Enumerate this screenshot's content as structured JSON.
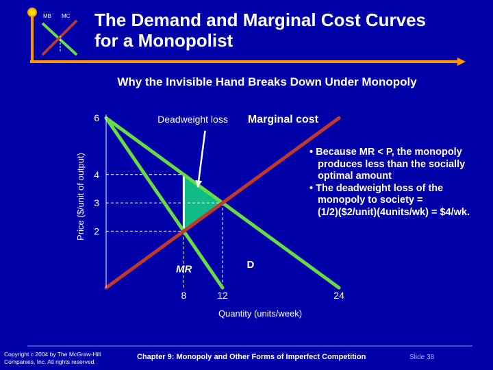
{
  "slide": {
    "logo_labels": [
      "MB",
      "MC"
    ],
    "title_line1": "The Demand and Marginal Cost Curves",
    "title_line2": "for a Monopolist",
    "subtitle": "Why the Invisible Hand Breaks Down Under Monopoly",
    "bullets": [
      "• Because MR < P, the monopoly",
      "produces less than the socially",
      "optimal amount",
      "• The deadweight loss of the",
      "monopoly to society =",
      "(1/2)($2/unit)(4units/wk) = $4/wk."
    ],
    "copyright": "Copyright c 2004 by The McGraw-Hill Companies, Inc. All rights reserved.",
    "chapter": "Chapter 9: Monopoly and Other Forms of Imperfect Competition",
    "slide_number": "Slide 38"
  },
  "colors": {
    "background": "#0000a8",
    "curve_green": "#66dd44",
    "mc_red": "#c0392b",
    "dwl_fill": "#11bb88",
    "arrow_orange": "#ff9900"
  },
  "chart_data": {
    "type": "line",
    "title": "",
    "xlabel": "Quantity (units/week)",
    "ylabel": "Price ($/unit of output)",
    "xlim": [
      0,
      24
    ],
    "ylim": [
      0,
      6
    ],
    "x_ticks": [
      {
        "value": 8,
        "label": "8"
      },
      {
        "value": 12,
        "label": "12"
      },
      {
        "value": 24,
        "label": "24"
      }
    ],
    "y_ticks": [
      {
        "value": 6,
        "label": "6"
      },
      {
        "value": 4,
        "label": "4"
      },
      {
        "value": 3,
        "label": "3"
      },
      {
        "value": 2,
        "label": "2"
      }
    ],
    "series": [
      {
        "name": "D",
        "points": [
          [
            0,
            6
          ],
          [
            24,
            0
          ]
        ]
      },
      {
        "name": "MR",
        "points": [
          [
            0,
            6
          ],
          [
            12,
            0
          ]
        ]
      },
      {
        "name": "Marginal cost",
        "points": [
          [
            0,
            0
          ],
          [
            24,
            6
          ]
        ]
      }
    ],
    "deadweight_loss": {
      "label": "Deadweight loss",
      "polygon": [
        [
          8,
          4
        ],
        [
          8,
          2
        ],
        [
          12,
          3
        ]
      ]
    },
    "guides": [
      {
        "from": [
          0,
          4
        ],
        "to": [
          8,
          4
        ]
      },
      {
        "from": [
          0,
          3
        ],
        "to": [
          12,
          3
        ]
      },
      {
        "from": [
          0,
          2
        ],
        "to": [
          8,
          2
        ]
      },
      {
        "from": [
          8,
          4
        ],
        "to": [
          8,
          0
        ]
      },
      {
        "from": [
          12,
          3
        ],
        "to": [
          12,
          0
        ]
      }
    ]
  }
}
